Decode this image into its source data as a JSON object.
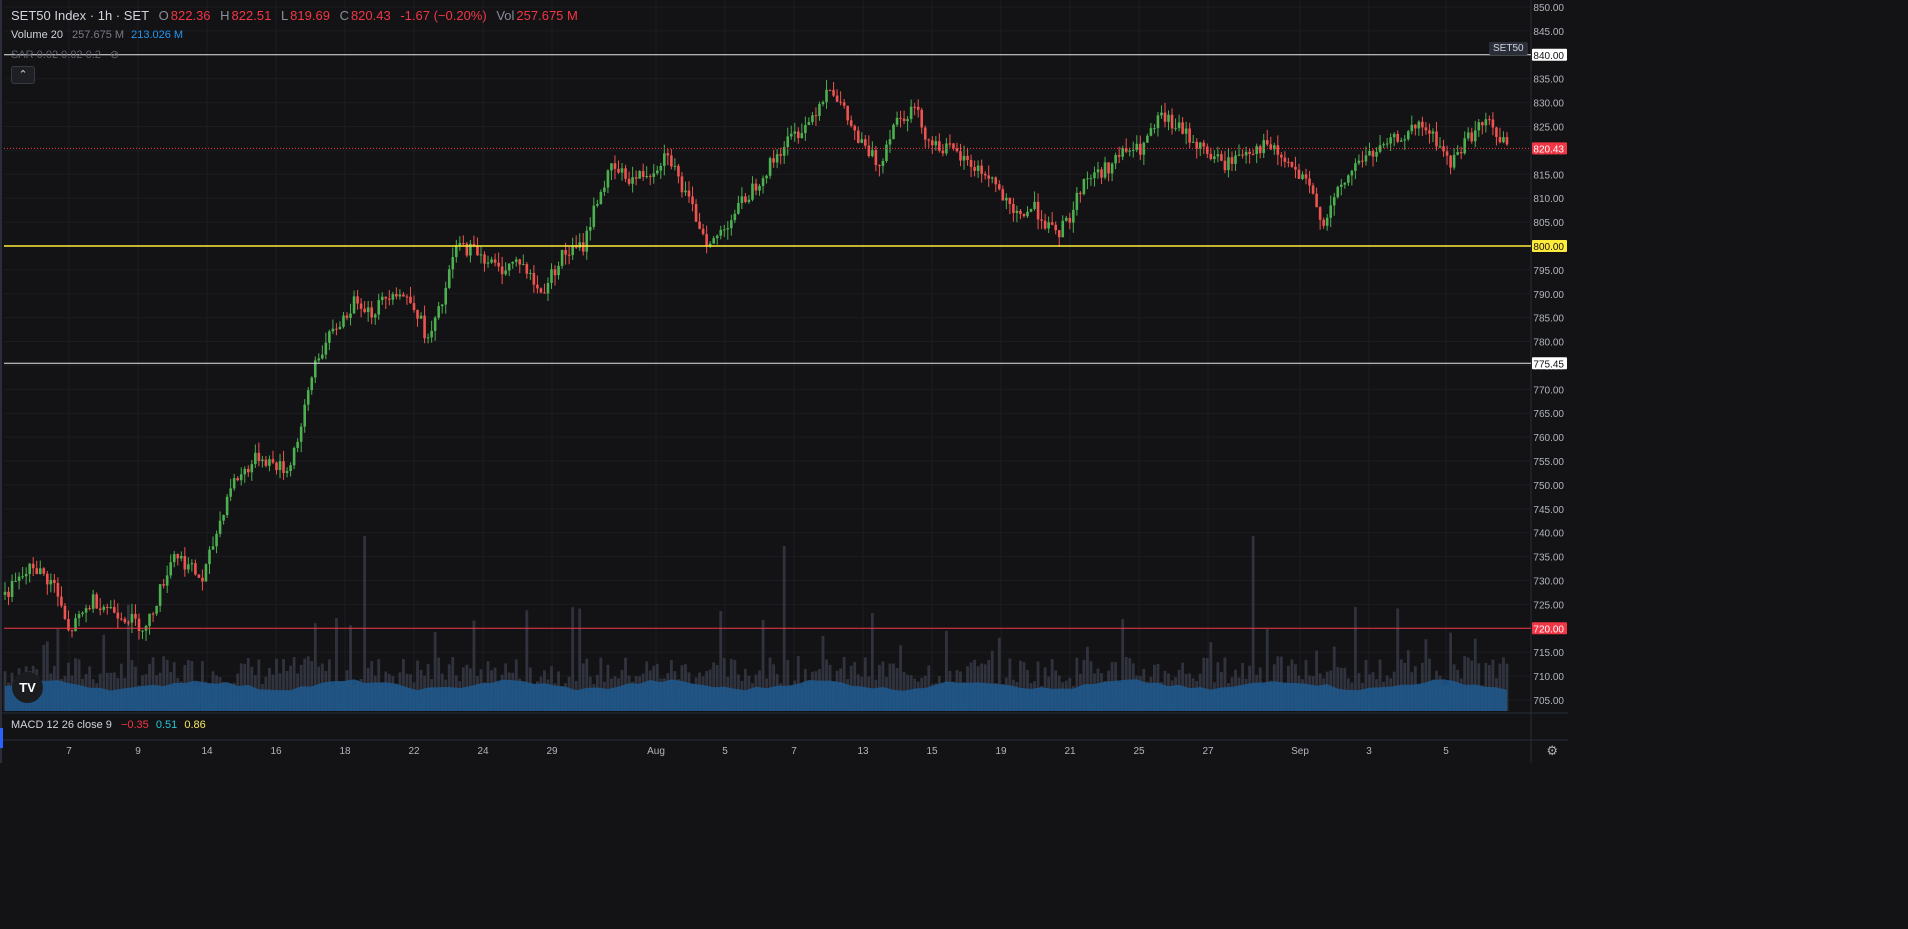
{
  "header": {
    "symbol": "SET50 Index · 1h · SET",
    "open_label": "O",
    "open": "822.36",
    "high_label": "H",
    "high": "822.51",
    "low_label": "L",
    "low": "819.69",
    "close_label": "C",
    "close": "820.43",
    "change": "-1.67 (−0.20%)",
    "vol_label": "Vol",
    "vol": "257.675 M"
  },
  "volume_legend": {
    "name": "Volume 20",
    "v1": "257.675 M",
    "v2": "213.026 M"
  },
  "sar_legend": {
    "name": "SAR 0.02 0.02 0.2"
  },
  "macd_legend": {
    "name": "MACD 12 26 close 9",
    "v1": "−0.35",
    "v2": "0.51",
    "v3": "0.86"
  },
  "symbol_tag": "SET50",
  "logo_text": "TV",
  "collapse_icon": "chevron-up-icon",
  "settings_icon": "gear-icon",
  "colors": {
    "up": "#26a69a",
    "down": "#ef5350",
    "up_body": "#4caf50",
    "volume_ma": "#1e5b8f",
    "line_yellow": "#ffeb3b",
    "line_red": "#f23645",
    "line_white": "#e0e0e0"
  },
  "chart_data": {
    "type": "candlestick",
    "price_axis": {
      "min": 705,
      "max": 850,
      "step": 5
    },
    "price_ticks": [
      "850.00",
      "845.00",
      "840.00",
      "835.00",
      "830.00",
      "825.00",
      "820.00",
      "815.00",
      "810.00",
      "805.00",
      "800.00",
      "795.00",
      "790.00",
      "785.00",
      "780.00",
      "775.00",
      "770.00",
      "765.00",
      "760.00",
      "755.00",
      "750.00",
      "745.00",
      "740.00",
      "735.00",
      "730.00",
      "725.00",
      "720.00",
      "715.00",
      "710.00",
      "705.00"
    ],
    "x_ticks": [
      "7",
      "9",
      "14",
      "16",
      "18",
      "22",
      "24",
      "29",
      "Aug",
      "5",
      "7",
      "13",
      "15",
      "19",
      "21",
      "25",
      "27",
      "Sep",
      "3",
      "5"
    ],
    "horizontal_lines": [
      {
        "price": 840,
        "label": "840.00",
        "color": "white"
      },
      {
        "price": 820.43,
        "label": "820.43",
        "color": "red-dotted"
      },
      {
        "price": 800,
        "label": "800.00",
        "color": "yellow"
      },
      {
        "price": 775.45,
        "label": "775.45",
        "color": "white"
      },
      {
        "price": 720,
        "label": "720.00",
        "color": "red"
      }
    ],
    "price_path": [
      [
        0,
        727
      ],
      [
        8,
        733
      ],
      [
        14,
        729
      ],
      [
        18,
        719
      ],
      [
        25,
        726
      ],
      [
        33,
        723
      ],
      [
        40,
        720
      ],
      [
        48,
        736
      ],
      [
        56,
        730
      ],
      [
        64,
        750
      ],
      [
        72,
        756
      ],
      [
        80,
        753
      ],
      [
        84,
        762
      ],
      [
        88,
        776
      ],
      [
        94,
        783
      ],
      [
        100,
        789
      ],
      [
        104,
        786
      ],
      [
        110,
        791
      ],
      [
        116,
        788
      ],
      [
        120,
        780
      ],
      [
        124,
        788
      ],
      [
        128,
        800
      ],
      [
        134,
        799
      ],
      [
        140,
        795
      ],
      [
        146,
        797
      ],
      [
        152,
        790
      ],
      [
        158,
        798
      ],
      [
        164,
        800
      ],
      [
        168,
        810
      ],
      [
        172,
        816
      ],
      [
        178,
        814
      ],
      [
        184,
        816
      ],
      [
        188,
        820
      ],
      [
        192,
        812
      ],
      [
        196,
        806
      ],
      [
        200,
        800
      ],
      [
        206,
        806
      ],
      [
        212,
        812
      ],
      [
        218,
        818
      ],
      [
        222,
        822
      ],
      [
        228,
        826
      ],
      [
        234,
        834
      ],
      [
        238,
        828
      ],
      [
        242,
        822
      ],
      [
        248,
        817
      ],
      [
        252,
        826
      ],
      [
        258,
        829
      ],
      [
        262,
        822
      ],
      [
        268,
        820
      ],
      [
        274,
        817
      ],
      [
        280,
        814
      ],
      [
        286,
        806
      ],
      [
        292,
        808
      ],
      [
        298,
        802
      ],
      [
        302,
        806
      ],
      [
        306,
        814
      ],
      [
        312,
        816
      ],
      [
        318,
        820
      ],
      [
        322,
        820
      ],
      [
        328,
        827
      ],
      [
        334,
        824
      ],
      [
        340,
        820
      ],
      [
        346,
        817
      ],
      [
        352,
        820
      ],
      [
        358,
        821
      ],
      [
        364,
        817
      ],
      [
        370,
        812
      ],
      [
        374,
        805
      ],
      [
        378,
        811
      ],
      [
        384,
        818
      ],
      [
        390,
        820
      ],
      [
        396,
        823
      ],
      [
        402,
        825
      ],
      [
        406,
        822
      ],
      [
        410,
        817
      ],
      [
        414,
        822
      ],
      [
        420,
        826
      ],
      [
        426,
        821
      ]
    ],
    "volume_bars_relative": [
      0.35,
      0.3,
      0.4,
      0.28,
      0.45,
      0.32,
      0.5,
      0.3,
      0.38,
      0.6,
      0.3,
      0.42,
      0.35,
      0.55,
      0.3,
      0.4,
      1.0,
      0.35,
      0.48,
      0.3
    ]
  }
}
